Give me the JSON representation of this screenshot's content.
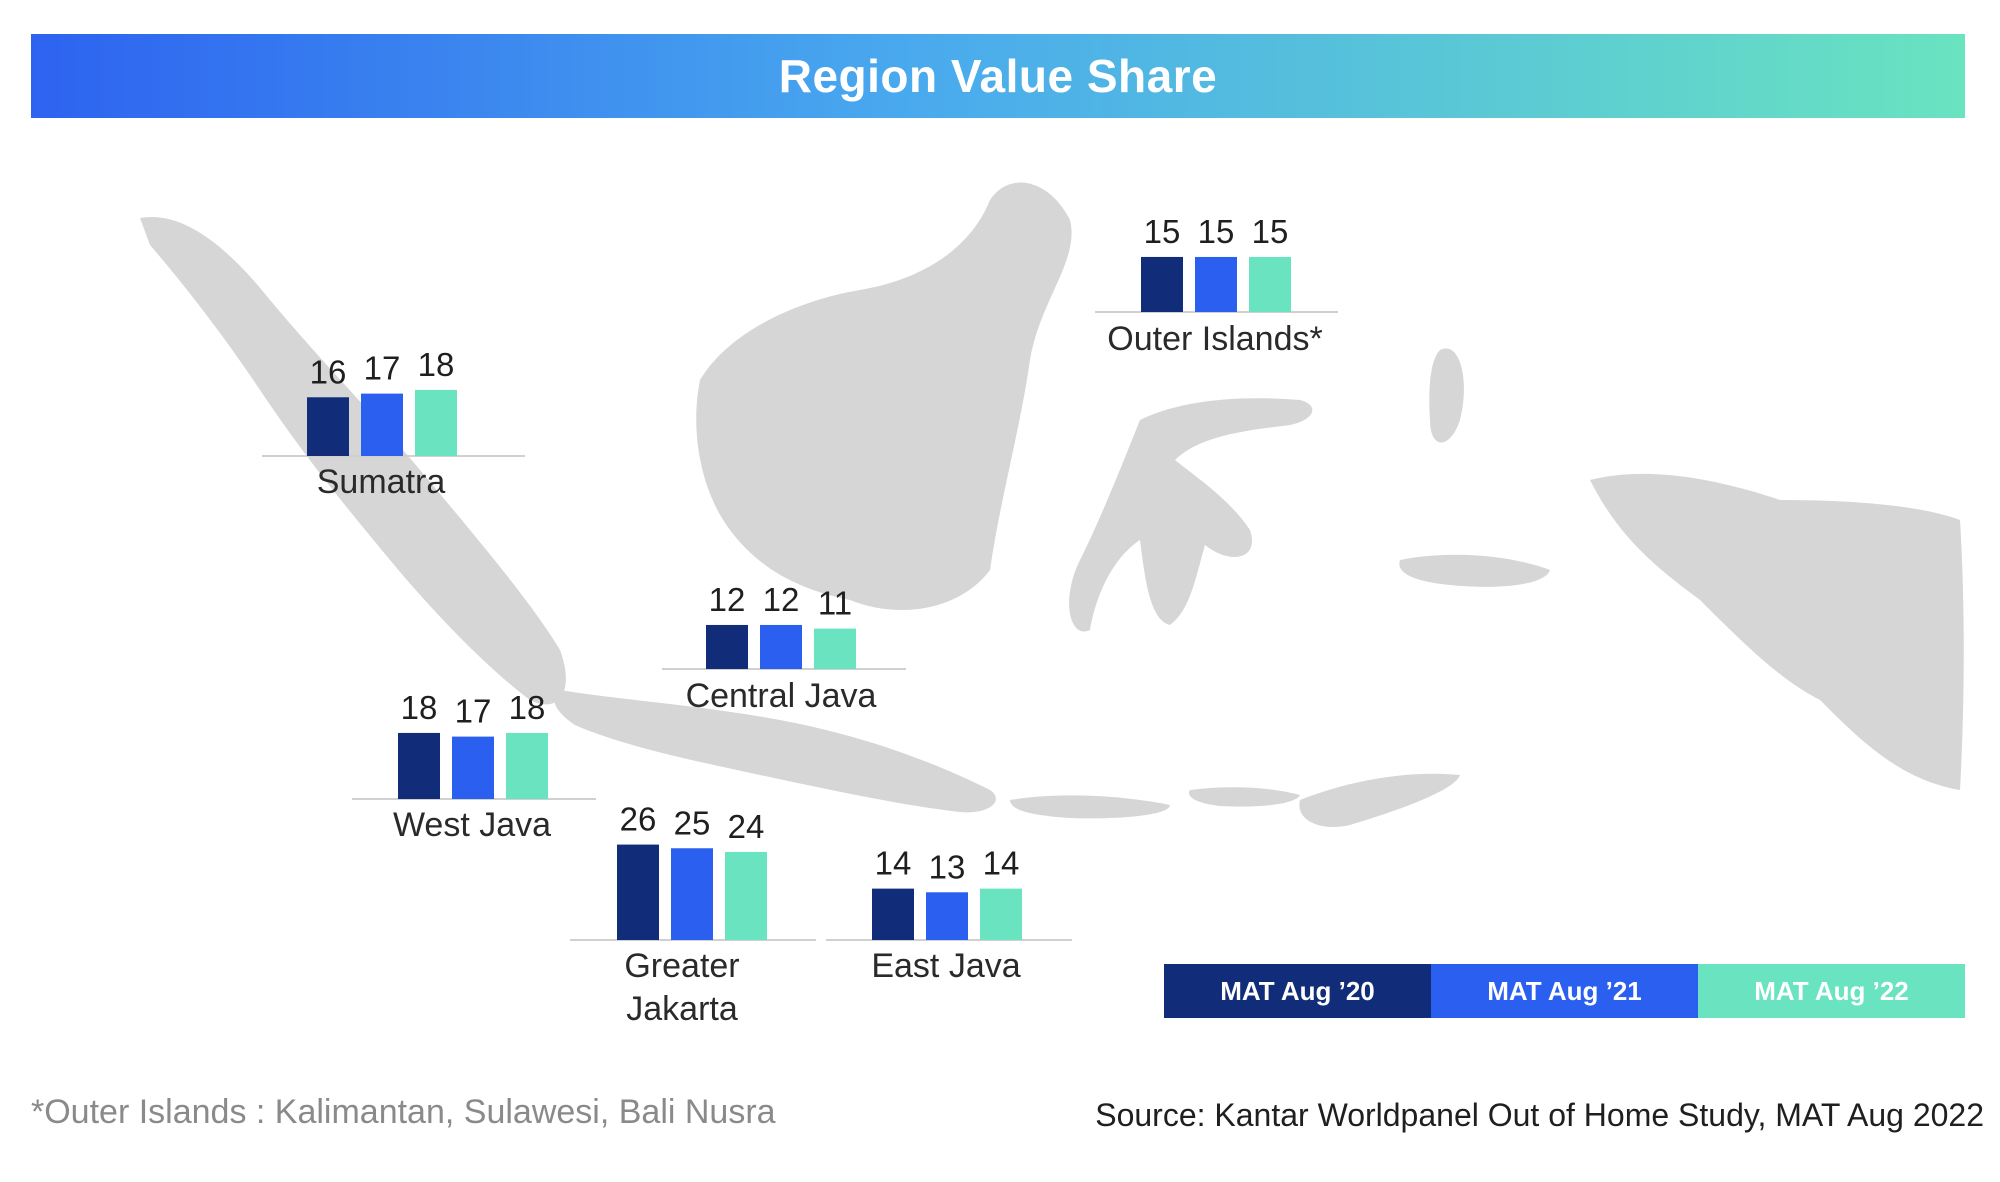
{
  "colors": {
    "series_1": "#112d7a",
    "series_2": "#2a5ff0",
    "series_3": "#69e3c0",
    "map": "#d6d6d6"
  },
  "chart_data": {
    "type": "bar",
    "title": "Region Value Share",
    "series": [
      {
        "name": "MAT Aug ’20"
      },
      {
        "name": "MAT Aug ’21"
      },
      {
        "name": "MAT Aug ’22"
      }
    ],
    "groups": [
      {
        "region": "Sumatra",
        "values": [
          16,
          17,
          18
        ]
      },
      {
        "region": "Outer Islands*",
        "values": [
          15,
          15,
          15
        ]
      },
      {
        "region": "Central Java",
        "values": [
          12,
          12,
          11
        ]
      },
      {
        "region": "West Java",
        "values": [
          18,
          17,
          18
        ]
      },
      {
        "region": "Greater Jakarta",
        "values": [
          26,
          25,
          24
        ]
      },
      {
        "region": "East Java",
        "values": [
          14,
          13,
          14
        ]
      }
    ],
    "legend_placement": "bottom-right"
  },
  "footnote": "*Outer Islands : Kalimantan, Sulawesi, Bali Nusra",
  "source": "Source: Kantar Worldpanel Out of Home Study, MAT Aug 2022"
}
